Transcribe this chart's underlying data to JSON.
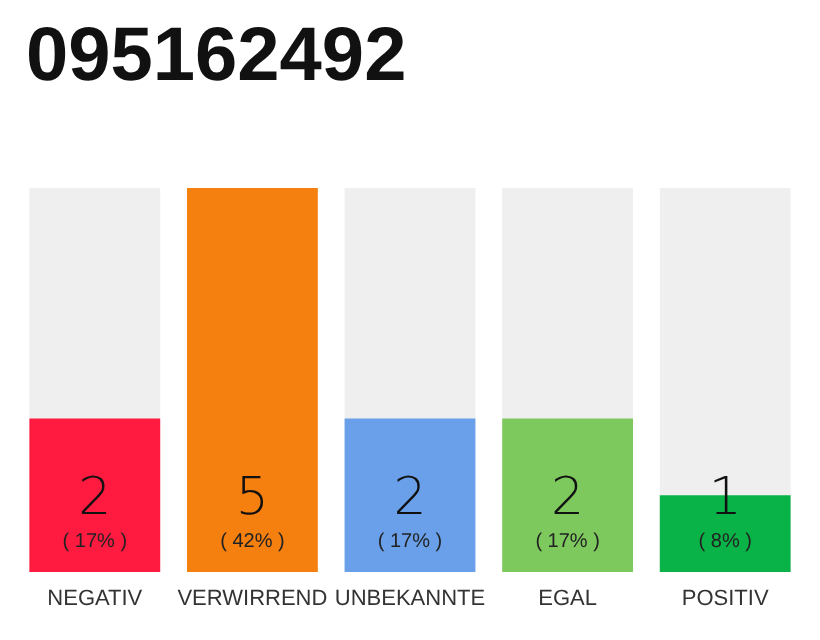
{
  "chart_data": {
    "type": "bar",
    "title": "095162492",
    "categories": [
      "NEGATIV",
      "VERWIRREND",
      "UNBEKANNTE",
      "EGAL",
      "POSITIV"
    ],
    "values": [
      2,
      5,
      2,
      2,
      1
    ],
    "colors": [
      "#ff1a40",
      "#f57f0f",
      "#6aa0ea",
      "#7ec95e",
      "#0ab347"
    ],
    "value_labels": [
      "2\n( 17% )",
      "5\n( 42% )",
      "2\n( 17% )",
      "2\n( 17% )",
      "1\n( 8% )"
    ],
    "ylim": [
      0,
      5
    ],
    "tick_labels": "x"
  }
}
